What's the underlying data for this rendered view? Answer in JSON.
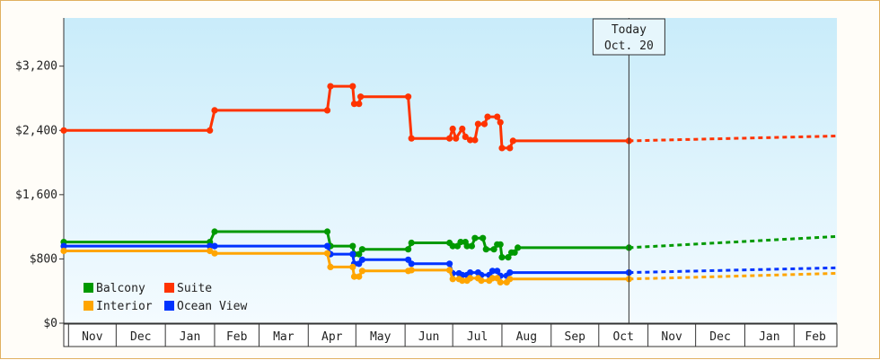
{
  "chart_data": {
    "type": "line",
    "title": "",
    "xlabel": "",
    "ylabel": "",
    "ylim": [
      0,
      3800
    ],
    "y_ticks": [
      0,
      800,
      1600,
      2400,
      3200
    ],
    "y_tick_labels": [
      "$0",
      "$800",
      "$1,600",
      "$2,400",
      "$3,200"
    ],
    "x_range": [
      "2013-10-29",
      "2015-02-28"
    ],
    "months": [
      {
        "label": "Nov",
        "start": "2013-11-01",
        "end": "2013-12-01"
      },
      {
        "label": "Dec",
        "start": "2013-12-01",
        "end": "2014-01-01"
      },
      {
        "label": "Jan",
        "start": "2014-01-01",
        "end": "2014-02-01"
      },
      {
        "label": "Feb",
        "start": "2014-02-01",
        "end": "2014-03-01"
      },
      {
        "label": "Mar",
        "start": "2014-03-01",
        "end": "2014-04-01"
      },
      {
        "label": "Apr",
        "start": "2014-04-01",
        "end": "2014-05-01"
      },
      {
        "label": "May",
        "start": "2014-05-01",
        "end": "2014-06-01"
      },
      {
        "label": "Jun",
        "start": "2014-06-01",
        "end": "2014-07-01"
      },
      {
        "label": "Jul",
        "start": "2014-07-01",
        "end": "2014-08-01"
      },
      {
        "label": "Aug",
        "start": "2014-08-01",
        "end": "2014-09-01"
      },
      {
        "label": "Sep",
        "start": "2014-09-01",
        "end": "2014-10-01"
      },
      {
        "label": "Oct",
        "start": "2014-10-01",
        "end": "2014-11-01"
      },
      {
        "label": "Nov",
        "start": "2014-11-01",
        "end": "2014-12-01"
      },
      {
        "label": "Dec",
        "start": "2014-12-01",
        "end": "2015-01-01"
      },
      {
        "label": "Jan",
        "start": "2015-01-01",
        "end": "2015-02-01"
      },
      {
        "label": "Feb",
        "start": "2015-02-01",
        "end": "2015-02-28"
      }
    ],
    "today": {
      "line1": "Today",
      "line2": "Oct. 20",
      "date": "2014-10-20"
    },
    "grid": false,
    "legend_position": "bottom-left",
    "series": [
      {
        "name": "Suite",
        "color": "#ff3300",
        "points": [
          [
            "2013-10-29",
            2400
          ],
          [
            "2014-01-29",
            2400
          ],
          [
            "2014-02-01",
            2650
          ],
          [
            "2014-04-13",
            2650
          ],
          [
            "2014-04-15",
            2950
          ],
          [
            "2014-04-29",
            2950
          ],
          [
            "2014-04-30",
            2730
          ],
          [
            "2014-05-03",
            2730
          ],
          [
            "2014-05-04",
            2820
          ],
          [
            "2014-06-03",
            2820
          ],
          [
            "2014-06-05",
            2300
          ],
          [
            "2014-06-29",
            2300
          ],
          [
            "2014-07-01",
            2420
          ],
          [
            "2014-07-03",
            2300
          ],
          [
            "2014-07-07",
            2420
          ],
          [
            "2014-07-09",
            2320
          ],
          [
            "2014-07-12",
            2280
          ],
          [
            "2014-07-15",
            2280
          ],
          [
            "2014-07-17",
            2480
          ],
          [
            "2014-07-21",
            2480
          ],
          [
            "2014-07-23",
            2570
          ],
          [
            "2014-07-29",
            2570
          ],
          [
            "2014-07-31",
            2500
          ],
          [
            "2014-08-01",
            2180
          ],
          [
            "2014-08-06",
            2180
          ],
          [
            "2014-08-08",
            2270
          ],
          [
            "2014-10-20",
            2270
          ]
        ],
        "projection": [
          [
            "2014-10-20",
            2270
          ],
          [
            "2015-02-28",
            2330
          ]
        ]
      },
      {
        "name": "Balcony",
        "color": "#009900",
        "points": [
          [
            "2013-10-29",
            1010
          ],
          [
            "2014-01-29",
            1010
          ],
          [
            "2014-02-01",
            1140
          ],
          [
            "2014-04-13",
            1140
          ],
          [
            "2014-04-15",
            960
          ],
          [
            "2014-04-29",
            960
          ],
          [
            "2014-04-30",
            860
          ],
          [
            "2014-05-03",
            860
          ],
          [
            "2014-05-05",
            920
          ],
          [
            "2014-06-03",
            920
          ],
          [
            "2014-06-05",
            1000
          ],
          [
            "2014-06-29",
            1000
          ],
          [
            "2014-07-01",
            960
          ],
          [
            "2014-07-04",
            960
          ],
          [
            "2014-07-06",
            1010
          ],
          [
            "2014-07-09",
            1010
          ],
          [
            "2014-07-10",
            960
          ],
          [
            "2014-07-13",
            960
          ],
          [
            "2014-07-15",
            1060
          ],
          [
            "2014-07-20",
            1060
          ],
          [
            "2014-07-22",
            920
          ],
          [
            "2014-07-27",
            920
          ],
          [
            "2014-07-29",
            980
          ],
          [
            "2014-07-31",
            980
          ],
          [
            "2014-08-01",
            820
          ],
          [
            "2014-08-05",
            820
          ],
          [
            "2014-08-07",
            880
          ],
          [
            "2014-08-09",
            880
          ],
          [
            "2014-08-11",
            940
          ],
          [
            "2014-10-20",
            940
          ]
        ],
        "projection": [
          [
            "2014-10-20",
            940
          ],
          [
            "2015-02-28",
            1080
          ]
        ]
      },
      {
        "name": "Ocean View",
        "color": "#0033ff",
        "points": [
          [
            "2013-10-29",
            960
          ],
          [
            "2014-01-29",
            960
          ],
          [
            "2014-02-01",
            960
          ],
          [
            "2014-04-13",
            960
          ],
          [
            "2014-04-15",
            860
          ],
          [
            "2014-04-29",
            860
          ],
          [
            "2014-04-30",
            740
          ],
          [
            "2014-05-03",
            740
          ],
          [
            "2014-05-05",
            790
          ],
          [
            "2014-06-03",
            790
          ],
          [
            "2014-06-05",
            740
          ],
          [
            "2014-06-29",
            740
          ],
          [
            "2014-07-01",
            620
          ],
          [
            "2014-07-05",
            620
          ],
          [
            "2014-07-07",
            600
          ],
          [
            "2014-07-10",
            600
          ],
          [
            "2014-07-12",
            630
          ],
          [
            "2014-07-17",
            630
          ],
          [
            "2014-07-19",
            600
          ],
          [
            "2014-07-24",
            600
          ],
          [
            "2014-07-26",
            650
          ],
          [
            "2014-07-29",
            650
          ],
          [
            "2014-07-31",
            590
          ],
          [
            "2014-08-04",
            590
          ],
          [
            "2014-08-06",
            630
          ],
          [
            "2014-10-20",
            630
          ]
        ],
        "projection": [
          [
            "2014-10-20",
            630
          ],
          [
            "2015-02-28",
            690
          ]
        ]
      },
      {
        "name": "Interior",
        "color": "#ffa500",
        "points": [
          [
            "2013-10-29",
            900
          ],
          [
            "2014-01-29",
            900
          ],
          [
            "2014-02-01",
            870
          ],
          [
            "2014-04-13",
            870
          ],
          [
            "2014-04-15",
            700
          ],
          [
            "2014-04-29",
            700
          ],
          [
            "2014-04-30",
            580
          ],
          [
            "2014-05-03",
            580
          ],
          [
            "2014-05-05",
            650
          ],
          [
            "2014-06-03",
            650
          ],
          [
            "2014-06-05",
            660
          ],
          [
            "2014-06-29",
            660
          ],
          [
            "2014-07-01",
            550
          ],
          [
            "2014-07-05",
            550
          ],
          [
            "2014-07-07",
            530
          ],
          [
            "2014-07-10",
            530
          ],
          [
            "2014-07-12",
            560
          ],
          [
            "2014-07-17",
            560
          ],
          [
            "2014-07-19",
            530
          ],
          [
            "2014-07-24",
            530
          ],
          [
            "2014-07-26",
            560
          ],
          [
            "2014-07-29",
            560
          ],
          [
            "2014-07-31",
            510
          ],
          [
            "2014-08-04",
            510
          ],
          [
            "2014-08-06",
            550
          ],
          [
            "2014-10-20",
            550
          ]
        ],
        "projection": [
          [
            "2014-10-20",
            550
          ],
          [
            "2015-02-28",
            620
          ]
        ]
      }
    ],
    "legend": [
      {
        "name": "Balcony",
        "color": "#009900"
      },
      {
        "name": "Suite",
        "color": "#ff3300"
      },
      {
        "name": "Interior",
        "color": "#ffa500"
      },
      {
        "name": "Ocean View",
        "color": "#0033ff"
      }
    ]
  }
}
